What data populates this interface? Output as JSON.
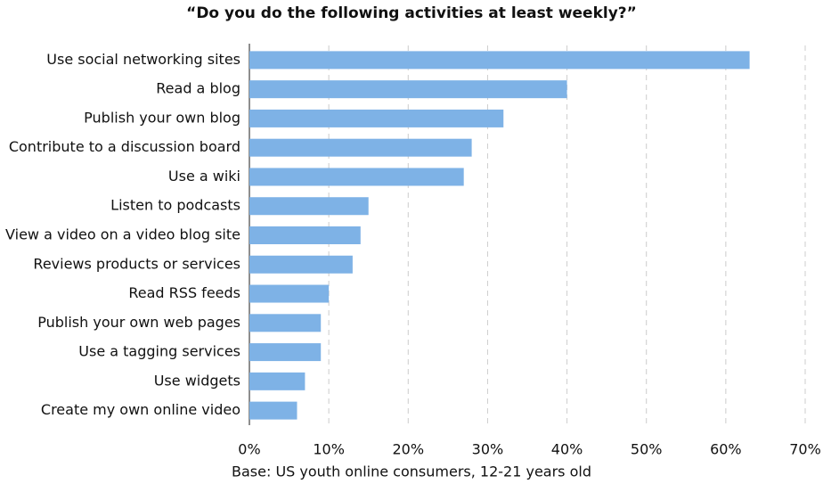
{
  "chart_data": {
    "type": "bar",
    "orientation": "horizontal",
    "title": "“Do you do the following activities at least weekly?”",
    "x_label": "Base: US youth online consumers, 12-21 years old",
    "categories": [
      "Use social networking sites",
      "Read a blog",
      "Publish your own blog",
      "Contribute to a discussion board",
      "Use a wiki",
      "Listen to podcasts",
      "View a video on a video blog site",
      "Reviews products or services",
      "Read RSS feeds",
      "Publish your own web pages",
      "Use a tagging services",
      "Use widgets",
      "Create my own online video"
    ],
    "values": [
      63,
      40,
      32,
      28,
      27,
      15,
      14,
      13,
      10,
      9,
      9,
      7,
      6
    ],
    "color": "#7eb2e6",
    "xlim": [
      0,
      70
    ],
    "xticks": [
      {
        "value": 0,
        "label": "0%"
      },
      {
        "value": 10,
        "label": "10%"
      },
      {
        "value": 20,
        "label": "20%"
      },
      {
        "value": 30,
        "label": "30%"
      },
      {
        "value": 40,
        "label": "40%"
      },
      {
        "value": 50,
        "label": "50%"
      },
      {
        "value": 60,
        "label": "60%"
      },
      {
        "value": 70,
        "label": "70%"
      }
    ],
    "grid": true
  }
}
